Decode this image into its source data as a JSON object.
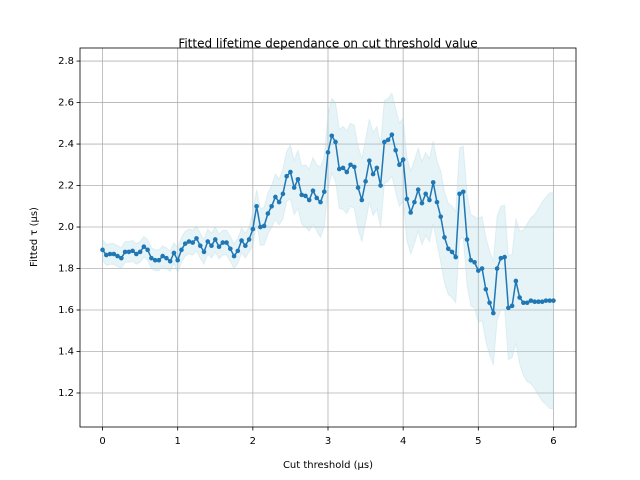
{
  "chart_data": {
    "type": "line",
    "title": "Fitted lifetime dependance on cut threshold value",
    "x_label": "Cut threshold (μs)",
    "y_label": "Fitted τ (μs)",
    "xlim": [
      -0.3,
      6.3
    ],
    "ylim": [
      1.036,
      2.863
    ],
    "xticks": [
      0,
      1,
      2,
      3,
      4,
      5,
      6
    ],
    "yticks": [
      1.2,
      1.4,
      1.6,
      1.8,
      {
        "value": 2,
        "label": "2.0"
      },
      2.2,
      2.4,
      2.6,
      2.8
    ],
    "grid": true,
    "x": [
      0,
      0.05,
      0.1,
      0.15,
      0.2,
      0.25,
      0.3,
      0.35,
      0.4,
      0.45,
      0.5,
      0.55,
      0.6,
      0.65,
      0.7,
      0.75,
      0.8,
      0.85,
      0.9,
      0.95,
      1,
      1.05,
      1.1,
      1.15,
      1.2,
      1.25,
      1.3,
      1.35,
      1.4,
      1.45,
      1.5,
      1.55,
      1.6,
      1.65,
      1.7,
      1.75,
      1.8,
      1.85,
      1.9,
      1.95,
      2,
      2.05,
      2.1,
      2.15,
      2.2,
      2.25,
      2.3,
      2.35,
      2.4,
      2.45,
      2.5,
      2.55,
      2.6,
      2.65,
      2.7,
      2.75,
      2.8,
      2.85,
      2.9,
      2.95,
      3,
      3.05,
      3.1,
      3.15,
      3.2,
      3.25,
      3.3,
      3.35,
      3.4,
      3.45,
      3.5,
      3.55,
      3.6,
      3.65,
      3.7,
      3.75,
      3.8,
      3.85,
      3.9,
      3.95,
      4,
      4.05,
      4.1,
      4.15,
      4.2,
      4.25,
      4.3,
      4.35,
      4.4,
      4.45,
      4.5,
      4.55,
      4.6,
      4.65,
      4.7,
      4.75,
      4.8,
      4.85,
      4.9,
      4.95,
      5,
      5.05,
      5.1,
      5.15,
      5.2,
      5.25,
      5.3,
      5.35,
      5.4,
      5.45,
      5.5,
      5.55,
      5.6,
      5.65,
      5.7,
      5.75,
      5.8,
      5.85,
      5.9,
      5.95,
      6
    ],
    "series": [
      {
        "color": "#1f77b4",
        "band_color": "#add8e6",
        "values": [
          1.89,
          1.865,
          1.87,
          1.87,
          1.86,
          1.85,
          1.88,
          1.88,
          1.885,
          1.87,
          1.88,
          1.905,
          1.89,
          1.85,
          1.84,
          1.84,
          1.86,
          1.85,
          1.835,
          1.875,
          1.84,
          1.89,
          1.92,
          1.93,
          1.925,
          1.945,
          1.91,
          1.88,
          1.93,
          1.91,
          1.94,
          1.905,
          1.925,
          1.925,
          1.895,
          1.86,
          1.885,
          1.935,
          1.91,
          1.94,
          1.99,
          2.1,
          2.0,
          2.005,
          2.065,
          2.1,
          2.145,
          2.12,
          2.16,
          2.245,
          2.265,
          2.19,
          2.23,
          2.155,
          2.15,
          2.13,
          2.175,
          2.14,
          2.12,
          2.17,
          2.36,
          2.44,
          2.41,
          2.28,
          2.285,
          2.265,
          2.3,
          2.29,
          2.19,
          2.13,
          2.22,
          2.32,
          2.255,
          2.285,
          2.2,
          2.41,
          2.42,
          2.445,
          2.37,
          2.3,
          2.325,
          2.135,
          2.07,
          2.12,
          2.18,
          2.115,
          2.16,
          2.13,
          2.215,
          2.12,
          2.05,
          1.95,
          1.895,
          1.88,
          1.855,
          2.16,
          2.17,
          1.94,
          1.84,
          1.83,
          1.79,
          1.8,
          1.7,
          1.635,
          1.585,
          1.8,
          1.85,
          1.855,
          1.61,
          1.62,
          1.74,
          1.66,
          1.635,
          1.635,
          1.645,
          1.64,
          1.64,
          1.64,
          1.645,
          1.645,
          1.645
        ],
        "errors": [
          0.05,
          0.05,
          0.05,
          0.05,
          0.05,
          0.05,
          0.05,
          0.05,
          0.05,
          0.05,
          0.05,
          0.05,
          0.05,
          0.05,
          0.05,
          0.05,
          0.05,
          0.05,
          0.05,
          0.05,
          0.06,
          0.06,
          0.06,
          0.06,
          0.06,
          0.06,
          0.06,
          0.06,
          0.06,
          0.06,
          0.06,
          0.06,
          0.06,
          0.06,
          0.06,
          0.06,
          0.06,
          0.06,
          0.06,
          0.06,
          0.08,
          0.08,
          0.09,
          0.09,
          0.1,
          0.1,
          0.11,
          0.11,
          0.12,
          0.12,
          0.13,
          0.13,
          0.14,
          0.14,
          0.15,
          0.15,
          0.16,
          0.16,
          0.17,
          0.17,
          0.18,
          0.18,
          0.19,
          0.19,
          0.2,
          0.2,
          0.2,
          0.2,
          0.2,
          0.2,
          0.2,
          0.2,
          0.2,
          0.2,
          0.2,
          0.2,
          0.2,
          0.2,
          0.2,
          0.2,
          0.2,
          0.2,
          0.2,
          0.2,
          0.2,
          0.2,
          0.2,
          0.2,
          0.2,
          0.2,
          0.22,
          0.22,
          0.22,
          0.22,
          0.22,
          0.22,
          0.22,
          0.22,
          0.22,
          0.22,
          0.25,
          0.25,
          0.25,
          0.25,
          0.25,
          0.25,
          0.25,
          0.25,
          0.25,
          0.25,
          0.3,
          0.32,
          0.35,
          0.38,
          0.4,
          0.42,
          0.45,
          0.48,
          0.5,
          0.52,
          0.52
        ]
      }
    ]
  }
}
